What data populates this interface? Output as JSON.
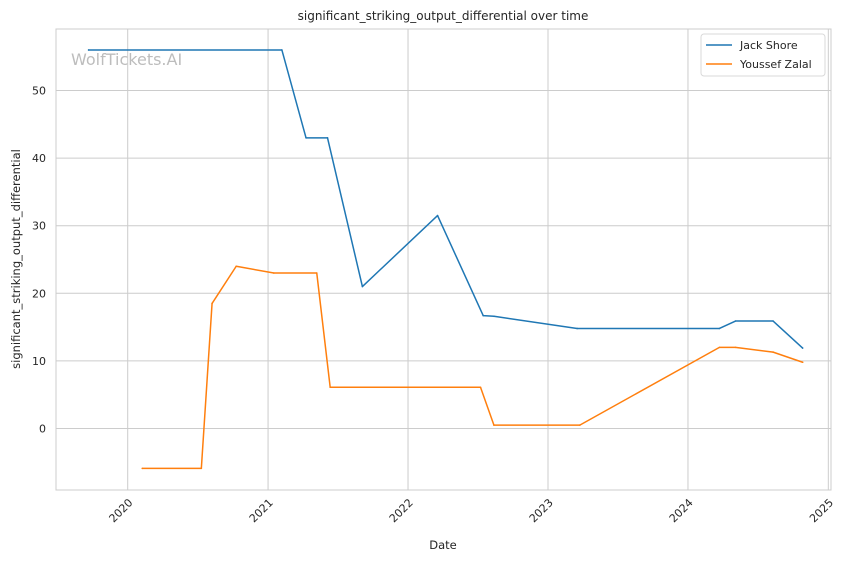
{
  "chart_data": {
    "type": "line",
    "title": "significant_striking_output_differential over time",
    "xlabel": "Date",
    "ylabel": "significant_striking_output_differential",
    "watermark": "WolfTickets.AI",
    "x_ticks": [
      "2020",
      "2021",
      "2022",
      "2023",
      "2024",
      "2025"
    ],
    "y_ticks": [
      0,
      10,
      20,
      30,
      40,
      50
    ],
    "xlim": [
      "2019-06-28",
      "2025-01-08"
    ],
    "ylim": [
      -9.1,
      59.1
    ],
    "grid": true,
    "legend_position": "top-right",
    "series": [
      {
        "name": "Jack Shore",
        "color": "#1f77b4",
        "points": [
          [
            "2019-09-21",
            56
          ],
          [
            "2021-02-06",
            56
          ],
          [
            "2021-04-10",
            43
          ],
          [
            "2021-06-05",
            43
          ],
          [
            "2021-09-04",
            21
          ],
          [
            "2022-03-19",
            31.5
          ],
          [
            "2022-07-16",
            16.7
          ],
          [
            "2022-08-13",
            16.6
          ],
          [
            "2023-03-18",
            14.8
          ],
          [
            "2024-03-23",
            14.8
          ],
          [
            "2024-05-04",
            15.9
          ],
          [
            "2024-08-10",
            15.9
          ],
          [
            "2024-10-26",
            11.9
          ]
        ]
      },
      {
        "name": "Youssef Zalal",
        "color": "#ff7f0e",
        "points": [
          [
            "2020-02-08",
            -5.9
          ],
          [
            "2020-07-11",
            -5.9
          ],
          [
            "2020-08-08",
            18.5
          ],
          [
            "2020-10-10",
            24
          ],
          [
            "2021-01-16",
            23
          ],
          [
            "2021-05-08",
            23
          ],
          [
            "2021-06-12",
            6.1
          ],
          [
            "2022-07-09",
            6.1
          ],
          [
            "2022-08-13",
            0.5
          ],
          [
            "2023-03-25",
            0.5
          ],
          [
            "2024-03-23",
            12
          ],
          [
            "2024-05-04",
            12
          ],
          [
            "2024-08-10",
            11.3
          ],
          [
            "2024-10-26",
            9.8
          ]
        ]
      }
    ]
  }
}
